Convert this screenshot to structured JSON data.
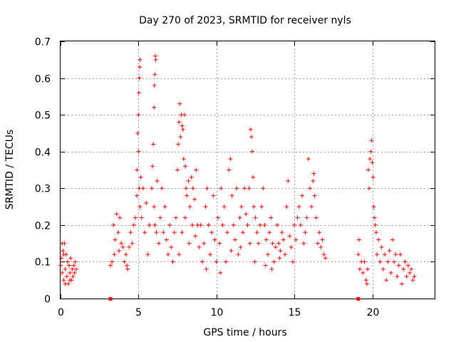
{
  "chart_data": {
    "type": "scatter",
    "title": "Day 270 of 2023, SRMTID for receiver nyls",
    "xlabel": "GPS time / hours",
    "ylabel": "SRMTID / TECUs",
    "xlim": [
      0,
      24
    ],
    "ylim": [
      0,
      0.7
    ],
    "xticks": [
      0,
      5,
      10,
      15,
      20
    ],
    "yticks": [
      0,
      0.1,
      0.2,
      0.3,
      0.4,
      0.5,
      0.6,
      0.7
    ],
    "grid": true,
    "marker": "+",
    "color": "#ff0000",
    "series": [
      {
        "name": "SRMTID",
        "points": [
          [
            0.0,
            0.09
          ],
          [
            0.05,
            0.11
          ],
          [
            0.1,
            0.07
          ],
          [
            0.15,
            0.13
          ],
          [
            0.2,
            0.05
          ],
          [
            0.25,
            0.15
          ],
          [
            0.3,
            0.08
          ],
          [
            0.35,
            0.12
          ],
          [
            0.4,
            0.06
          ],
          [
            0.45,
            0.1
          ],
          [
            0.5,
            0.04
          ],
          [
            0.55,
            0.09
          ],
          [
            0.6,
            0.07
          ],
          [
            0.65,
            0.11
          ],
          [
            0.7,
            0.05
          ],
          [
            0.75,
            0.08
          ],
          [
            0.8,
            0.06
          ],
          [
            0.85,
            0.09
          ],
          [
            0.9,
            0.07
          ],
          [
            0.95,
            0.1
          ],
          [
            1.0,
            0.08
          ],
          [
            0.3,
            0.04
          ],
          [
            0.6,
            0.05
          ],
          [
            0.2,
            0.12
          ],
          [
            0.1,
            0.15
          ],
          [
            3.2,
            0.09
          ],
          [
            3.3,
            0.1
          ],
          [
            3.4,
            0.2
          ],
          [
            3.5,
            0.16
          ],
          [
            3.6,
            0.23
          ],
          [
            3.7,
            0.18
          ],
          [
            3.8,
            0.22
          ],
          [
            3.9,
            0.15
          ],
          [
            4.0,
            0.14
          ],
          [
            4.1,
            0.1
          ],
          [
            4.2,
            0.12
          ],
          [
            4.3,
            0.08
          ],
          [
            4.4,
            0.14
          ],
          [
            4.5,
            0.18
          ],
          [
            4.6,
            0.15
          ],
          [
            4.7,
            0.2
          ],
          [
            4.8,
            0.22
          ],
          [
            3.45,
            0.12
          ],
          [
            3.75,
            0.13
          ],
          [
            4.25,
            0.09
          ],
          [
            4.9,
            0.35
          ],
          [
            4.95,
            0.45
          ],
          [
            5.0,
            0.5
          ],
          [
            5.02,
            0.56
          ],
          [
            5.05,
            0.6
          ],
          [
            5.08,
            0.63
          ],
          [
            5.1,
            0.65
          ],
          [
            4.9,
            0.28
          ],
          [
            5.0,
            0.4
          ],
          [
            5.05,
            0.3
          ],
          [
            5.1,
            0.25
          ],
          [
            5.15,
            0.33
          ],
          [
            5.2,
            0.22
          ],
          [
            5.3,
            0.3
          ],
          [
            5.4,
            0.18
          ],
          [
            5.5,
            0.26
          ],
          [
            5.6,
            0.12
          ],
          [
            5.7,
            0.2
          ],
          [
            5.85,
            0.3
          ],
          [
            5.9,
            0.36
          ],
          [
            5.95,
            0.42
          ],
          [
            6.0,
            0.52
          ],
          [
            6.02,
            0.58
          ],
          [
            6.05,
            0.61
          ],
          [
            6.08,
            0.66
          ],
          [
            6.1,
            0.65
          ],
          [
            6.0,
            0.25
          ],
          [
            6.05,
            0.2
          ],
          [
            6.15,
            0.18
          ],
          [
            6.2,
            0.32
          ],
          [
            6.3,
            0.15
          ],
          [
            6.4,
            0.22
          ],
          [
            6.5,
            0.3
          ],
          [
            6.6,
            0.18
          ],
          [
            6.7,
            0.25
          ],
          [
            6.8,
            0.16
          ],
          [
            6.9,
            0.12
          ],
          [
            7.0,
            0.2
          ],
          [
            7.1,
            0.14
          ],
          [
            7.2,
            0.1
          ],
          [
            7.3,
            0.18
          ],
          [
            7.4,
            0.22
          ],
          [
            7.5,
            0.35
          ],
          [
            7.55,
            0.42
          ],
          [
            7.6,
            0.48
          ],
          [
            7.65,
            0.53
          ],
          [
            7.7,
            0.44
          ],
          [
            7.75,
            0.5
          ],
          [
            7.8,
            0.47
          ],
          [
            7.85,
            0.46
          ],
          [
            7.9,
            0.38
          ],
          [
            7.95,
            0.5
          ],
          [
            8.0,
            0.36
          ],
          [
            8.05,
            0.3
          ],
          [
            8.1,
            0.28
          ],
          [
            8.2,
            0.32
          ],
          [
            8.3,
            0.25
          ],
          [
            8.4,
            0.33
          ],
          [
            8.5,
            0.3
          ],
          [
            8.6,
            0.27
          ],
          [
            8.7,
            0.35
          ],
          [
            8.8,
            0.2
          ],
          [
            8.9,
            0.14
          ],
          [
            9.0,
            0.2
          ],
          [
            7.6,
            0.12
          ],
          [
            7.8,
            0.18
          ],
          [
            8.0,
            0.22
          ],
          [
            8.25,
            0.15
          ],
          [
            8.45,
            0.2
          ],
          [
            8.65,
            0.17
          ],
          [
            9.1,
            0.1
          ],
          [
            9.2,
            0.15
          ],
          [
            9.3,
            0.25
          ],
          [
            9.4,
            0.3
          ],
          [
            9.5,
            0.2
          ],
          [
            9.6,
            0.12
          ],
          [
            9.7,
            0.18
          ],
          [
            9.8,
            0.28
          ],
          [
            9.9,
            0.16
          ],
          [
            10.0,
            0.1
          ],
          [
            10.1,
            0.22
          ],
          [
            10.2,
            0.15
          ],
          [
            10.3,
            0.3
          ],
          [
            10.4,
            0.2
          ],
          [
            10.5,
            0.25
          ],
          [
            10.6,
            0.1
          ],
          [
            10.7,
            0.18
          ],
          [
            10.8,
            0.35
          ],
          [
            10.9,
            0.38
          ],
          [
            11.0,
            0.28
          ],
          [
            11.1,
            0.2
          ],
          [
            11.2,
            0.16
          ],
          [
            11.3,
            0.3
          ],
          [
            11.4,
            0.12
          ],
          [
            11.5,
            0.22
          ],
          [
            11.6,
            0.25
          ],
          [
            11.7,
            0.18
          ],
          [
            11.8,
            0.3
          ],
          [
            11.9,
            0.23
          ],
          [
            12.0,
            0.2
          ],
          [
            9.35,
            0.08
          ],
          [
            10.25,
            0.07
          ],
          [
            10.95,
            0.13
          ],
          [
            11.55,
            0.14
          ],
          [
            12.1,
            0.3
          ],
          [
            12.2,
            0.46
          ],
          [
            12.25,
            0.44
          ],
          [
            12.3,
            0.4
          ],
          [
            12.35,
            0.33
          ],
          [
            12.4,
            0.25
          ],
          [
            12.5,
            0.22
          ],
          [
            12.6,
            0.18
          ],
          [
            12.7,
            0.15
          ],
          [
            12.8,
            0.2
          ],
          [
            12.9,
            0.25
          ],
          [
            13.0,
            0.3
          ],
          [
            13.1,
            0.2
          ],
          [
            13.2,
            0.16
          ],
          [
            13.3,
            0.12
          ],
          [
            13.4,
            0.18
          ],
          [
            13.5,
            0.22
          ],
          [
            13.6,
            0.15
          ],
          [
            13.7,
            0.1
          ],
          [
            13.8,
            0.14
          ],
          [
            13.9,
            0.2
          ],
          [
            14.0,
            0.15
          ],
          [
            14.1,
            0.13
          ],
          [
            14.2,
            0.18
          ],
          [
            14.3,
            0.16
          ],
          [
            14.4,
            0.12
          ],
          [
            14.5,
            0.25
          ],
          [
            14.6,
            0.32
          ],
          [
            14.7,
            0.17
          ],
          [
            14.8,
            0.14
          ],
          [
            14.9,
            0.1
          ],
          [
            15.0,
            0.2
          ],
          [
            15.1,
            0.16
          ],
          [
            12.15,
            0.15
          ],
          [
            12.45,
            0.1
          ],
          [
            13.15,
            0.09
          ],
          [
            13.55,
            0.08
          ],
          [
            14.05,
            0.11
          ],
          [
            15.2,
            0.22
          ],
          [
            15.3,
            0.25
          ],
          [
            15.4,
            0.2
          ],
          [
            15.5,
            0.28
          ],
          [
            15.6,
            0.15
          ],
          [
            15.7,
            0.18
          ],
          [
            15.8,
            0.22
          ],
          [
            15.9,
            0.38
          ],
          [
            16.0,
            0.3
          ],
          [
            16.1,
            0.25
          ],
          [
            16.2,
            0.32
          ],
          [
            16.25,
            0.34
          ],
          [
            16.3,
            0.28
          ],
          [
            16.4,
            0.22
          ],
          [
            16.5,
            0.15
          ],
          [
            16.6,
            0.18
          ],
          [
            16.7,
            0.14
          ],
          [
            16.8,
            0.16
          ],
          [
            16.9,
            0.12
          ],
          [
            17.0,
            0.11
          ],
          [
            19.1,
            0.12
          ],
          [
            19.15,
            0.16
          ],
          [
            19.2,
            0.08
          ],
          [
            19.3,
            0.1
          ],
          [
            19.4,
            0.07
          ],
          [
            19.5,
            0.1
          ],
          [
            19.6,
            0.05
          ],
          [
            19.65,
            0.04
          ],
          [
            19.7,
            0.08
          ],
          [
            19.75,
            0.35
          ],
          [
            19.8,
            0.3
          ],
          [
            19.85,
            0.38
          ],
          [
            19.9,
            0.4
          ],
          [
            19.95,
            0.43
          ],
          [
            20.0,
            0.37
          ],
          [
            20.05,
            0.33
          ],
          [
            20.1,
            0.25
          ],
          [
            20.15,
            0.22
          ],
          [
            20.2,
            0.2
          ],
          [
            20.25,
            0.18
          ],
          [
            20.3,
            0.12
          ],
          [
            20.4,
            0.16
          ],
          [
            20.5,
            0.1
          ],
          [
            20.6,
            0.14
          ],
          [
            20.7,
            0.08
          ],
          [
            20.8,
            0.12
          ],
          [
            20.9,
            0.05
          ],
          [
            21.0,
            0.1
          ],
          [
            21.1,
            0.13
          ],
          [
            21.2,
            0.07
          ],
          [
            21.3,
            0.16
          ],
          [
            21.4,
            0.1
          ],
          [
            21.5,
            0.12
          ],
          [
            21.6,
            0.06
          ],
          [
            21.7,
            0.09
          ],
          [
            21.8,
            0.12
          ],
          [
            21.9,
            0.04
          ],
          [
            22.0,
            0.08
          ],
          [
            22.1,
            0.1
          ],
          [
            22.2,
            0.06
          ],
          [
            22.3,
            0.09
          ],
          [
            22.4,
            0.07
          ],
          [
            22.5,
            0.08
          ],
          [
            22.6,
            0.05
          ],
          [
            22.7,
            0.06
          ]
        ]
      }
    ],
    "markers_at_zero": [
      3.2,
      19.1
    ]
  }
}
